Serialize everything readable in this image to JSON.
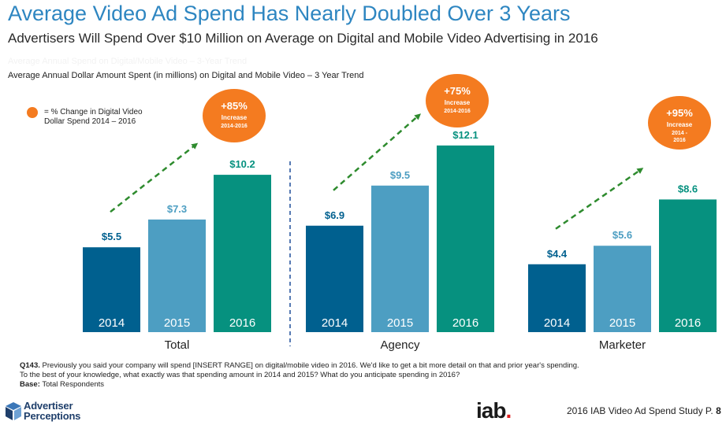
{
  "header": {
    "title": "Average Video Ad Spend Has Nearly Doubled Over 3 Years",
    "subtitle": "Advertisers Will Spend Over $10 Million on Average on Digital and Mobile Video Advertising in 2016",
    "faded_text": "Average Annual Spend on Digital/Mobile Video – 3-Year Trend"
  },
  "legend": {
    "text_line1": "= % Change in Digital Video",
    "text_line2": "Dollar Spend  2014 – 2016",
    "color": "#f47b20"
  },
  "colors": {
    "2014": "#00608f",
    "2015": "#4d9ec2",
    "2016": "#06917f",
    "badge": "#f47b20",
    "arrow": "#2e8b2e",
    "divider": "#1f4e9a",
    "title": "#2e86c1"
  },
  "chart_data": {
    "type": "bar",
    "title": "Average Annual Dollar Amount Spent (in millions) on Digital and Mobile Video – 3 Year Trend",
    "categories": [
      "Total",
      "Agency",
      "Marketer"
    ],
    "series_labels": [
      "2014",
      "2015",
      "2016"
    ],
    "groups": [
      {
        "category": "Total",
        "values": [
          5.5,
          7.3,
          10.2
        ],
        "value_labels": [
          "$5.5",
          "$7.3",
          "$10.2"
        ],
        "badge": {
          "pct": "+85%",
          "line1": "Increase",
          "line2": "2014-2016"
        }
      },
      {
        "category": "Agency",
        "values": [
          6.9,
          9.5,
          12.1
        ],
        "value_labels": [
          "$6.9",
          "$9.5",
          "$12.1"
        ],
        "badge": {
          "pct": "+75%",
          "line1": "Increase",
          "line2": "2014-2016"
        }
      },
      {
        "category": "Marketer",
        "values": [
          4.4,
          5.6,
          8.6
        ],
        "value_labels": [
          "$4.4",
          "$5.6",
          "$8.6"
        ],
        "badge": {
          "pct": "+95%",
          "line1": "Increase",
          "line2": "2014 -",
          "line3": "2016"
        }
      }
    ]
  },
  "footer": {
    "q_label": "Q143.",
    "q_text1": " Previously you said your company will spend [INSERT RANGE] on digital/mobile video in 2016.  We'd like to get a bit more detail on that and prior year's spending.",
    "q_text2": "To the best of your knowledge, what exactly was that spending amount in 2014 and 2015? What do you anticipate spending in 2016?",
    "base_label": "Base:",
    "base_text": " Total Respondents"
  },
  "branding": {
    "logo_line1": "Advertiser",
    "logo_line2": "Perceptions",
    "iab": "iab",
    "iab_dot": ".",
    "study": "2016 IAB Video Ad Spend Study  P.",
    "page": "8"
  }
}
